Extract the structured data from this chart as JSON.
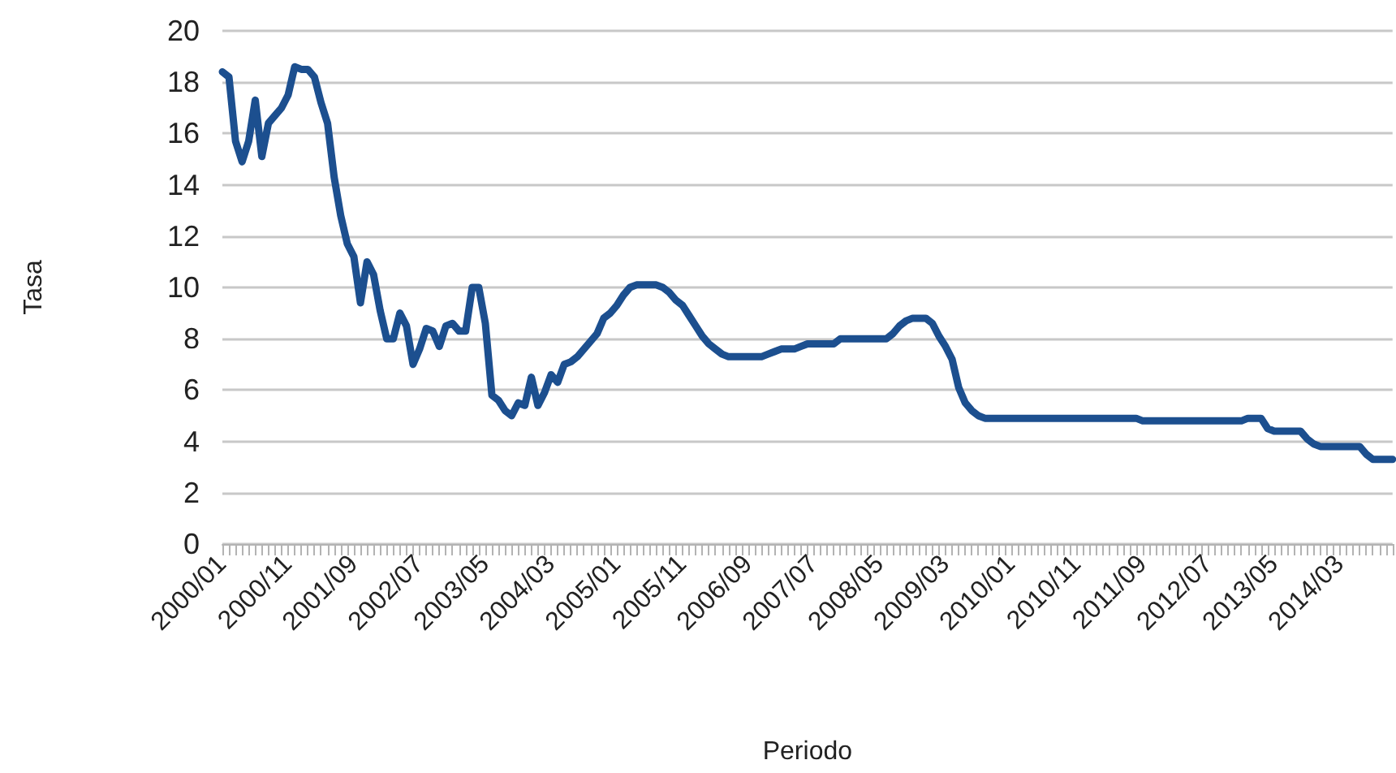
{
  "chart_data": {
    "type": "line",
    "xlabel": "Periodo",
    "ylabel": "Tasa",
    "categories": [
      "2000/01",
      null,
      null,
      null,
      null,
      null,
      null,
      null,
      null,
      null,
      "2000/11",
      null,
      null,
      null,
      null,
      null,
      null,
      null,
      null,
      null,
      "2001/09",
      null,
      null,
      null,
      null,
      null,
      null,
      null,
      null,
      null,
      "2002/07",
      null,
      null,
      null,
      null,
      null,
      null,
      null,
      null,
      null,
      "2003/05",
      null,
      null,
      null,
      null,
      null,
      null,
      null,
      null,
      null,
      "2004/03",
      null,
      null,
      null,
      null,
      null,
      null,
      null,
      null,
      null,
      "2005/01",
      null,
      null,
      null,
      null,
      null,
      null,
      null,
      null,
      null,
      "2005/11",
      null,
      null,
      null,
      null,
      null,
      null,
      null,
      null,
      null,
      "2006/09",
      null,
      null,
      null,
      null,
      null,
      null,
      null,
      null,
      null,
      "2007/07",
      null,
      null,
      null,
      null,
      null,
      null,
      null,
      null,
      null,
      "2008/05",
      null,
      null,
      null,
      null,
      null,
      null,
      null,
      null,
      null,
      "2009/03",
      null,
      null,
      null,
      null,
      null,
      null,
      null,
      null,
      null,
      "2010/01",
      null,
      null,
      null,
      null,
      null,
      null,
      null,
      null,
      null,
      "2010/11",
      null,
      null,
      null,
      null,
      null,
      null,
      null,
      null,
      null,
      "2011/09",
      null,
      null,
      null,
      null,
      null,
      null,
      null,
      null,
      null,
      "2012/07",
      null,
      null,
      null,
      null,
      null,
      null,
      null,
      null,
      null,
      "2013/05",
      null,
      null,
      null,
      null,
      null,
      null,
      null,
      null,
      null,
      "2014/03",
      null,
      null,
      null,
      null,
      null,
      null,
      null,
      null
    ],
    "series": [
      {
        "color": "#1c4f8f",
        "values": [
          18.4,
          18.2,
          15.7,
          14.9,
          15.7,
          17.3,
          15.1,
          16.4,
          16.7,
          17.0,
          17.5,
          18.6,
          18.5,
          18.5,
          18.2,
          17.2,
          16.4,
          14.3,
          12.8,
          11.7,
          11.2,
          9.4,
          11.0,
          10.5,
          9.1,
          8.0,
          8.0,
          9.0,
          8.5,
          7.0,
          7.6,
          8.4,
          8.3,
          7.7,
          8.5,
          8.6,
          8.3,
          8.3,
          10.0,
          10.0,
          8.6,
          5.8,
          5.6,
          5.2,
          5.0,
          5.5,
          5.4,
          6.5,
          5.4,
          5.9,
          6.6,
          6.3,
          7.0,
          7.1,
          7.3,
          7.6,
          7.9,
          8.2,
          8.8,
          9.0,
          9.3,
          9.7,
          10.0,
          10.1,
          10.1,
          10.1,
          10.1,
          10.0,
          9.8,
          9.5,
          9.3,
          8.9,
          8.5,
          8.1,
          7.8,
          7.6,
          7.4,
          7.3,
          7.3,
          7.3,
          7.3,
          7.3,
          7.3,
          7.4,
          7.5,
          7.6,
          7.6,
          7.6,
          7.7,
          7.8,
          7.8,
          7.8,
          7.8,
          7.8,
          8.0,
          8.0,
          8.0,
          8.0,
          8.0,
          8.0,
          8.0,
          8.0,
          8.2,
          8.5,
          8.7,
          8.8,
          8.8,
          8.8,
          8.6,
          8.1,
          7.7,
          7.2,
          6.1,
          5.5,
          5.2,
          5.0,
          4.9,
          4.9,
          4.9,
          4.9,
          4.9,
          4.9,
          4.9,
          4.9,
          4.9,
          4.9,
          4.9,
          4.9,
          4.9,
          4.9,
          4.9,
          4.9,
          4.9,
          4.9,
          4.9,
          4.9,
          4.9,
          4.9,
          4.9,
          4.9,
          4.8,
          4.8,
          4.8,
          4.8,
          4.8,
          4.8,
          4.8,
          4.8,
          4.8,
          4.8,
          4.8,
          4.8,
          4.8,
          4.8,
          4.8,
          4.8,
          4.9,
          4.9,
          4.9,
          4.5,
          4.4,
          4.4,
          4.4,
          4.4,
          4.4,
          4.1,
          3.9,
          3.8,
          3.8,
          3.8,
          3.8,
          3.8,
          3.8,
          3.8,
          3.5,
          3.3,
          3.3,
          3.3,
          3.3
        ]
      }
    ],
    "ylim": [
      0,
      20
    ],
    "yticks": [
      0,
      2,
      4,
      6,
      8,
      10,
      12,
      14,
      16,
      18,
      20
    ],
    "grid": "y",
    "marker": "none",
    "line_style": "solid"
  }
}
